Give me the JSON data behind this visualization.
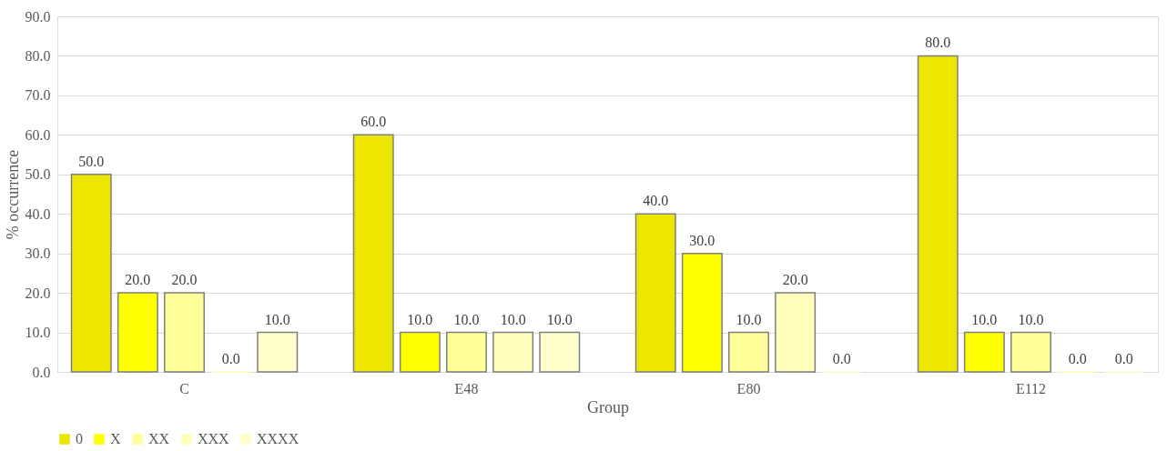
{
  "chart_data": {
    "type": "bar",
    "xlabel": "Group",
    "ylabel": "% occurrence",
    "categories": [
      "C",
      "E48",
      "E80",
      "E112"
    ],
    "series": [
      {
        "name": "0",
        "color": "#ece600",
        "values": [
          50,
          60,
          40,
          80
        ],
        "value_labels": [
          "50.0",
          "60.0",
          "40.0",
          "80.0"
        ]
      },
      {
        "name": "X",
        "color": "#ffff00",
        "values": [
          20,
          10,
          30,
          10
        ],
        "value_labels": [
          "20.0",
          "10.0",
          "30.0",
          "10.0"
        ]
      },
      {
        "name": "XX",
        "color": "#ffff99",
        "values": [
          20,
          10,
          10,
          10
        ],
        "value_labels": [
          "20.0",
          "10.0",
          "10.0",
          "10.0"
        ]
      },
      {
        "name": "XXX",
        "color": "#ffffbb",
        "values": [
          0,
          10,
          20,
          0
        ],
        "value_labels": [
          "0.0",
          "10.0",
          "20.0",
          "0.0"
        ]
      },
      {
        "name": "XXXX",
        "color": "#ffffcc",
        "values": [
          10,
          10,
          0,
          0
        ],
        "value_labels": [
          "10.0",
          "10.0",
          "0.0",
          "0.0"
        ]
      }
    ],
    "ylim": [
      0,
      90
    ],
    "yticks": [
      {
        "value": 0,
        "label": "0.0"
      },
      {
        "value": 10,
        "label": "10.0"
      },
      {
        "value": 20,
        "label": "20.0"
      },
      {
        "value": 30,
        "label": "30.0"
      },
      {
        "value": 40,
        "label": "40.0"
      },
      {
        "value": 50,
        "label": "50.0"
      },
      {
        "value": 60,
        "label": "60.0"
      },
      {
        "value": 70,
        "label": "70.0"
      },
      {
        "value": 80,
        "label": "80.0"
      },
      {
        "value": 90,
        "label": "90.0"
      }
    ],
    "grid": "y",
    "legend": "bottom"
  }
}
